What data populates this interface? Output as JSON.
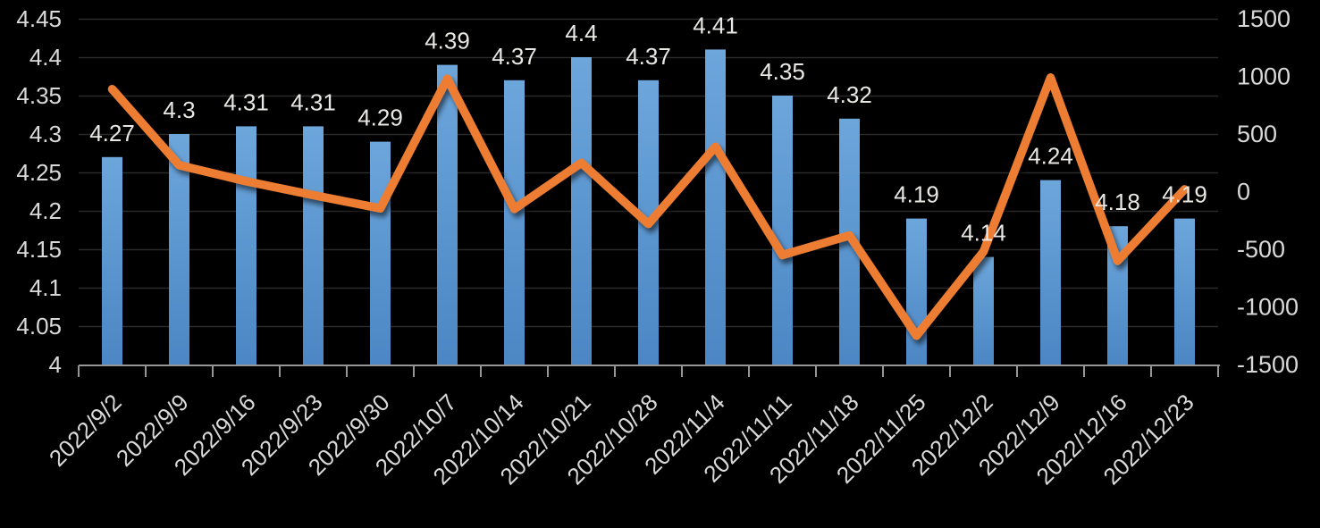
{
  "chart_data": {
    "type": "combo",
    "title": "",
    "categories": [
      "2022/9/2",
      "2022/9/9",
      "2022/9/16",
      "2022/9/23",
      "2022/9/30",
      "2022/10/7",
      "2022/10/14",
      "2022/10/21",
      "2022/10/28",
      "2022/11/4",
      "2022/11/11",
      "2022/11/18",
      "2022/11/25",
      "2022/12/2",
      "2022/12/9",
      "2022/12/16",
      "2022/12/23"
    ],
    "series": [
      {
        "id": "bar-series",
        "type": "bar",
        "axis": "left",
        "values": [
          4.27,
          4.3,
          4.31,
          4.31,
          4.29,
          4.39,
          4.37,
          4.4,
          4.37,
          4.41,
          4.35,
          4.32,
          4.19,
          4.14,
          4.24,
          4.18,
          4.19
        ],
        "data_labels": [
          "4.27",
          "4.3",
          "4.31",
          "4.31",
          "4.29",
          "4.39",
          "4.37",
          "4.4",
          "4.37",
          "4.41",
          "4.35",
          "4.32",
          "4.19",
          "4.14",
          "4.24",
          "4.18",
          "4.19"
        ]
      },
      {
        "id": "line-series",
        "type": "line",
        "axis": "right",
        "values": [
          890,
          230,
          90,
          -30,
          -145,
          980,
          -150,
          250,
          -280,
          390,
          -550,
          -380,
          -1250,
          -520,
          990,
          -600,
          20
        ]
      }
    ],
    "left_axis": {
      "min": 4,
      "max": 4.45,
      "step": 0.05,
      "tick_labels": [
        "4.45",
        "4.4",
        "4.35",
        "4.3",
        "4.25",
        "4.2",
        "4.15",
        "4.1",
        "4.05",
        "4"
      ]
    },
    "right_axis": {
      "min": -1500,
      "max": 1500,
      "step": 500,
      "tick_labels": [
        "1500",
        "1000",
        "500",
        "0",
        "-500",
        "-1000",
        "-1500"
      ]
    },
    "grid": true,
    "legend": "none",
    "colors": {
      "background": "#000000",
      "bar_top": "#6CA6DB",
      "bar_bottom": "#4C86C4",
      "line": "#ED7D31",
      "gridline": "#2A2A2A",
      "axis_line": "#969696",
      "axis_text": "#D9D9D9",
      "data_label_text": "#EAE8E4"
    }
  }
}
